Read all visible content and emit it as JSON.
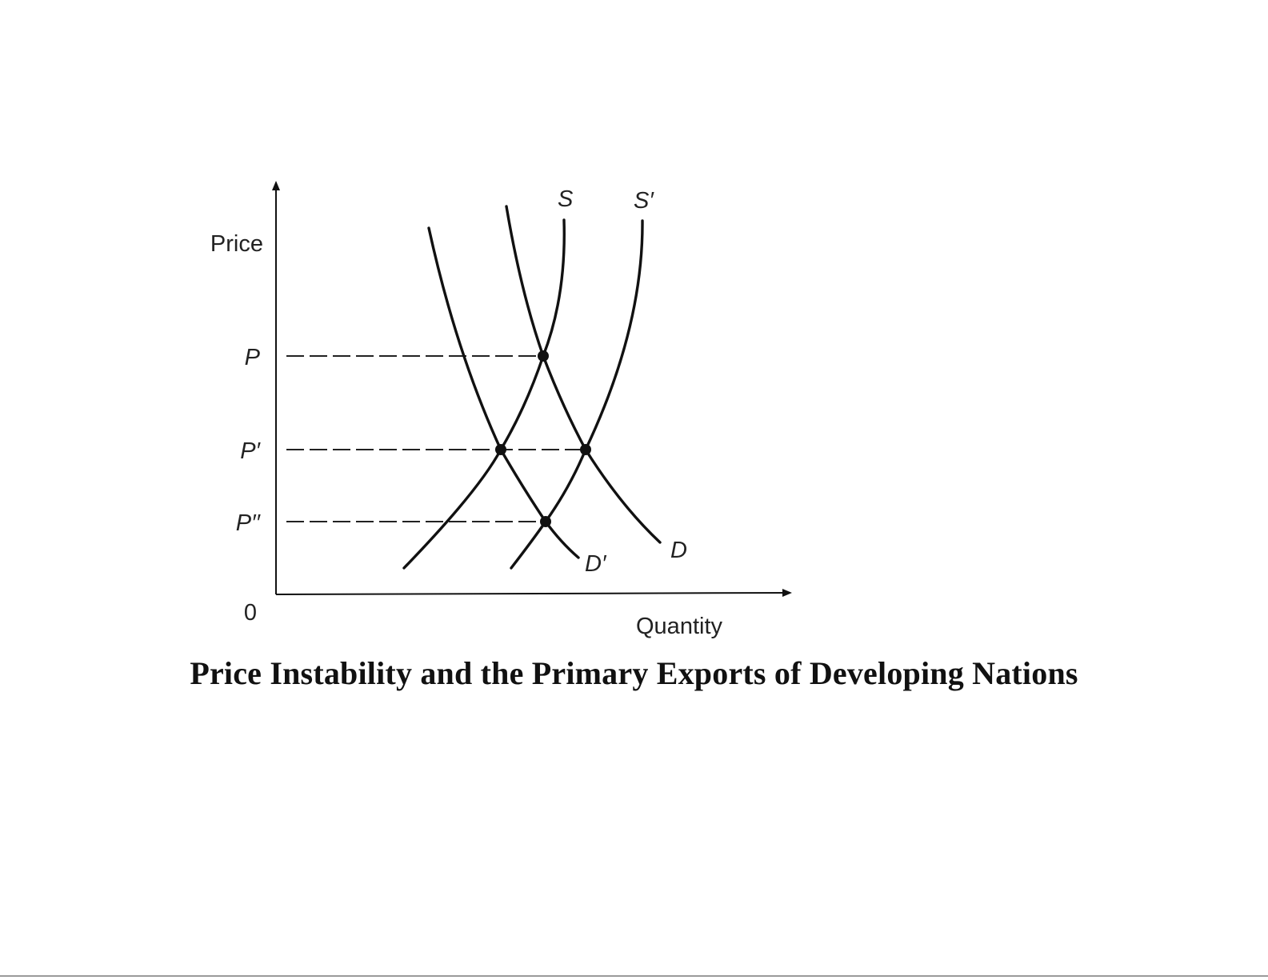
{
  "axes": {
    "y_label": "Price",
    "x_label": "Quantity",
    "origin": "0"
  },
  "price_levels": [
    {
      "label": "P"
    },
    {
      "label": "P′"
    },
    {
      "label": "P′′"
    }
  ],
  "curves": {
    "supply": "S",
    "supply_shifted": "S′",
    "demand": "D",
    "demand_shifted": "D′"
  },
  "caption": "Price Instability and the Primary Exports of Developing Nations",
  "colors": {
    "ink": "#111111",
    "background": "#ffffff"
  }
}
